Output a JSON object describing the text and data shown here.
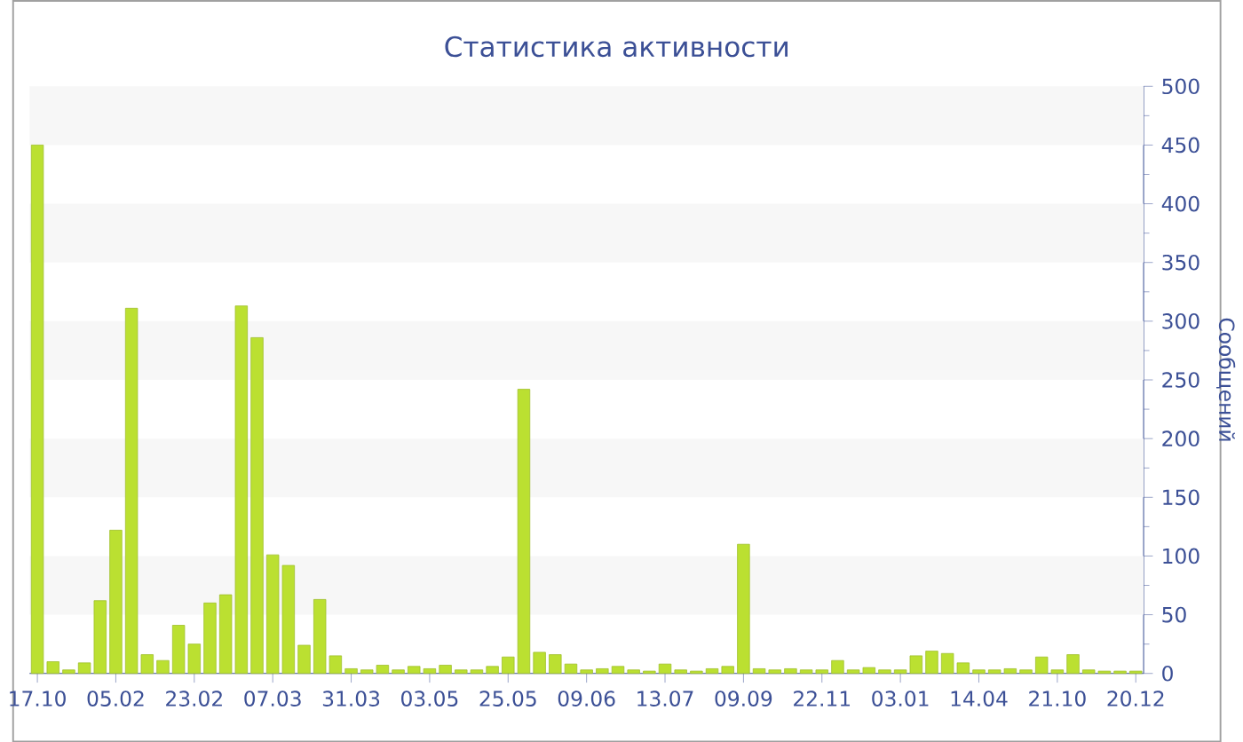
{
  "chart_data": {
    "type": "bar",
    "title": "Статистика активности",
    "ylabel": "Сообщений",
    "categories": [
      "17.10",
      null,
      null,
      null,
      null,
      "05.02",
      null,
      null,
      null,
      null,
      "23.02",
      null,
      null,
      null,
      null,
      "07.03",
      null,
      null,
      null,
      null,
      "31.03",
      null,
      null,
      null,
      null,
      "03.05",
      null,
      null,
      null,
      null,
      "25.05",
      null,
      null,
      null,
      null,
      "09.06",
      null,
      null,
      null,
      null,
      "13.07",
      null,
      null,
      null,
      null,
      "09.09",
      null,
      null,
      null,
      null,
      "22.11",
      null,
      null,
      null,
      null,
      "03.01",
      null,
      null,
      null,
      null,
      "14.04",
      null,
      null,
      null,
      null,
      "21.10",
      null,
      null,
      null,
      null,
      "20.12"
    ],
    "values": [
      450,
      10,
      3,
      9,
      62,
      122,
      311,
      16,
      11,
      41,
      25,
      60,
      67,
      313,
      286,
      101,
      92,
      24,
      63,
      15,
      4,
      3,
      7,
      3,
      6,
      4,
      7,
      3,
      3,
      6,
      14,
      242,
      18,
      16,
      8,
      3,
      4,
      6,
      3,
      2,
      8,
      3,
      2,
      4,
      6,
      110,
      4,
      3,
      4,
      3,
      3,
      11,
      3,
      5,
      3,
      3,
      15,
      19,
      17,
      9,
      3,
      3,
      4,
      3,
      14,
      3,
      16,
      3,
      2,
      2,
      2
    ],
    "color": "#bbe031",
    "ylim": [
      0,
      500
    ],
    "yticks": [
      0,
      50,
      100,
      150,
      200,
      250,
      300,
      350,
      400,
      450,
      500
    ],
    "bands": [
      {
        "axis": "y",
        "from": 50,
        "to": 100,
        "color": "#f7f7f7"
      },
      {
        "axis": "y",
        "from": 150,
        "to": 200,
        "color": "#f7f7f7"
      },
      {
        "axis": "y",
        "from": 250,
        "to": 300,
        "color": "#f7f7f7"
      },
      {
        "axis": "y",
        "from": 350,
        "to": 400,
        "color": "#f7f7f7"
      },
      {
        "axis": "y",
        "from": 450,
        "to": 500,
        "color": "#f7f7f7"
      }
    ]
  }
}
